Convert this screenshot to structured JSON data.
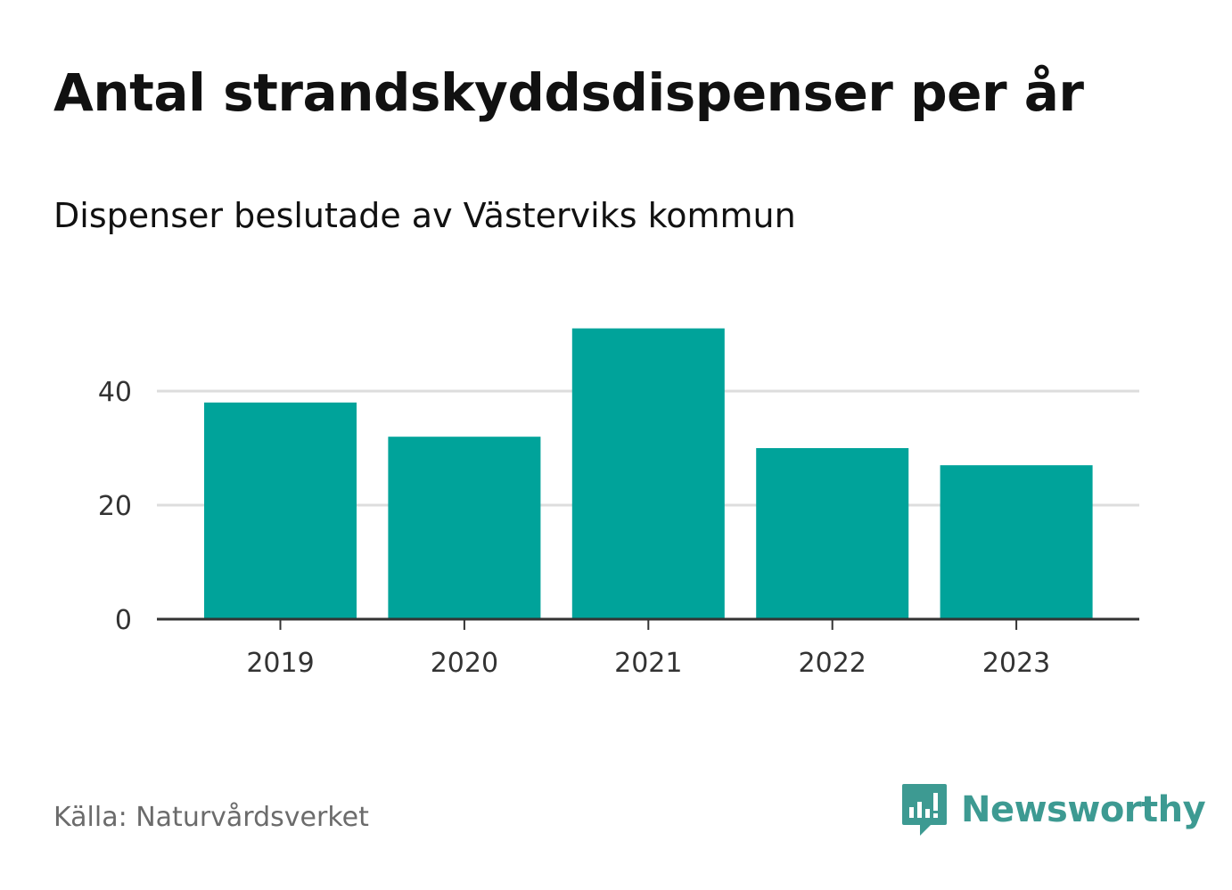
{
  "title": "Antal strandskyddsdispenser per år",
  "subtitle": "Dispenser beslutade av Västerviks kommun",
  "source": "Källa: Naturvårdsverket",
  "brand": {
    "name": "Newsworthy",
    "icon": "newsworthy-logo-icon",
    "color": "#3d9a92"
  },
  "colors": {
    "bar": "#00a39a",
    "grid": "#dddddd",
    "axis": "#333333"
  },
  "chart_data": {
    "type": "bar",
    "title": "Antal strandskyddsdispenser per år",
    "subtitle": "Dispenser beslutade av Västerviks kommun",
    "categories": [
      "2019",
      "2020",
      "2021",
      "2022",
      "2023"
    ],
    "values": [
      38,
      32,
      51,
      30,
      27
    ],
    "xlabel": "",
    "ylabel": "",
    "ylim": [
      0,
      53
    ],
    "yticks": [
      0,
      20,
      40
    ],
    "grid": true,
    "legend": "none"
  }
}
